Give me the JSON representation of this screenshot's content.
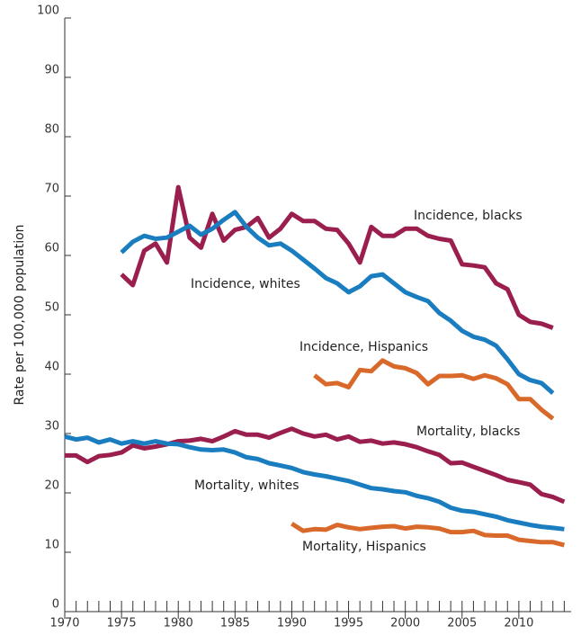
{
  "chart_data": {
    "type": "line",
    "ylabel": "Rate per 100,000 population",
    "xlim": [
      1970,
      2015
    ],
    "xticks": [
      1970,
      1975,
      1980,
      1985,
      1990,
      1995,
      2000,
      2005,
      2010
    ],
    "ylim": [
      0,
      100
    ],
    "yticks": [
      0,
      10,
      20,
      30,
      40,
      50,
      60,
      70,
      80,
      90,
      100
    ],
    "series": [
      {
        "name": "Incidence, blacks",
        "color": "#9b1f4e",
        "x": [
          1975,
          1976,
          1977,
          1978,
          1979,
          1980,
          1981,
          1982,
          1983,
          1984,
          1985,
          1986,
          1987,
          1988,
          1989,
          1990,
          1991,
          1992,
          1993,
          1994,
          1995,
          1996,
          1997,
          1998,
          1999,
          2000,
          2001,
          2002,
          2003,
          2004,
          2005,
          2006,
          2007,
          2008,
          2009,
          2010,
          2011,
          2012,
          2013
        ],
        "values": [
          56.8,
          55.0,
          60.8,
          62.0,
          58.8,
          71.5,
          63.0,
          61.3,
          67.0,
          62.5,
          64.3,
          64.8,
          66.3,
          63.0,
          64.5,
          67.0,
          65.8,
          65.8,
          64.5,
          64.3,
          62.0,
          58.8,
          64.8,
          63.3,
          63.3,
          64.5,
          64.5,
          63.3,
          62.8,
          62.5,
          58.5,
          58.3,
          58.0,
          55.3,
          54.3,
          50.0,
          48.8,
          48.5,
          47.8
        ]
      },
      {
        "name": "Incidence, whites",
        "color": "#1a7dc0",
        "x": [
          1975,
          1976,
          1977,
          1978,
          1979,
          1980,
          1981,
          1982,
          1983,
          1984,
          1985,
          1986,
          1987,
          1988,
          1989,
          1990,
          1991,
          1992,
          1993,
          1994,
          1995,
          1996,
          1997,
          1998,
          1999,
          2000,
          2001,
          2002,
          2003,
          2004,
          2005,
          2006,
          2007,
          2008,
          2009,
          2010,
          2011,
          2012,
          2013
        ],
        "values": [
          60.5,
          62.3,
          63.3,
          62.8,
          63.0,
          64.0,
          65.0,
          63.5,
          64.5,
          66.0,
          67.3,
          64.8,
          63.0,
          61.7,
          62.0,
          60.8,
          59.3,
          57.8,
          56.2,
          55.3,
          53.8,
          54.8,
          56.5,
          56.8,
          55.3,
          53.8,
          53.0,
          52.3,
          50.3,
          49.0,
          47.3,
          46.3,
          45.8,
          44.8,
          42.5,
          40.0,
          39.0,
          38.5,
          36.8
        ]
      },
      {
        "name": "Incidence, Hispanics",
        "color": "#d9692a",
        "x": [
          1992,
          1993,
          1994,
          1995,
          1996,
          1997,
          1998,
          1999,
          2000,
          2001,
          2002,
          2003,
          2004,
          2005,
          2006,
          2007,
          2008,
          2009,
          2010,
          2011,
          2012,
          2013
        ],
        "values": [
          39.8,
          38.3,
          38.5,
          37.8,
          40.7,
          40.5,
          42.3,
          41.3,
          41.0,
          40.2,
          38.3,
          39.7,
          39.7,
          39.8,
          39.2,
          39.8,
          39.3,
          38.3,
          35.8,
          35.8,
          34.0,
          32.5
        ]
      },
      {
        "name": "Mortality, blacks",
        "color": "#9b1f4e",
        "x": [
          1970,
          1971,
          1972,
          1973,
          1974,
          1975,
          1976,
          1977,
          1978,
          1979,
          1980,
          1981,
          1982,
          1983,
          1984,
          1985,
          1986,
          1987,
          1988,
          1989,
          1990,
          1991,
          1992,
          1993,
          1994,
          1995,
          1996,
          1997,
          1998,
          1999,
          2000,
          2001,
          2002,
          2003,
          2004,
          2005,
          2006,
          2007,
          2008,
          2009,
          2010,
          2011,
          2012,
          2013,
          2014
        ],
        "values": [
          26.3,
          26.3,
          25.2,
          26.2,
          26.4,
          26.8,
          28.0,
          27.5,
          27.8,
          28.2,
          28.7,
          28.8,
          29.1,
          28.7,
          29.5,
          30.4,
          29.8,
          29.8,
          29.3,
          30.1,
          30.8,
          30.0,
          29.5,
          29.8,
          29.0,
          29.5,
          28.6,
          28.8,
          28.3,
          28.5,
          28.2,
          27.7,
          27.0,
          26.4,
          25.0,
          25.1,
          24.4,
          23.7,
          23.0,
          22.2,
          21.8,
          21.4,
          19.8,
          19.3,
          18.5
        ]
      },
      {
        "name": "Mortality, whites",
        "color": "#1a7dc0",
        "x": [
          1970,
          1971,
          1972,
          1973,
          1974,
          1975,
          1976,
          1977,
          1978,
          1979,
          1980,
          1981,
          1982,
          1983,
          1984,
          1985,
          1986,
          1987,
          1988,
          1989,
          1990,
          1991,
          1992,
          1993,
          1994,
          1995,
          1996,
          1997,
          1998,
          1999,
          2000,
          2001,
          2002,
          2003,
          2004,
          2005,
          2006,
          2007,
          2008,
          2009,
          2010,
          2011,
          2012,
          2013,
          2014
        ],
        "values": [
          29.5,
          29.0,
          29.3,
          28.5,
          29.0,
          28.3,
          28.7,
          28.3,
          28.7,
          28.3,
          28.2,
          27.7,
          27.3,
          27.2,
          27.3,
          26.8,
          26.0,
          25.7,
          25.0,
          24.6,
          24.2,
          23.5,
          23.1,
          22.8,
          22.4,
          22.0,
          21.4,
          20.8,
          20.6,
          20.3,
          20.1,
          19.5,
          19.1,
          18.5,
          17.5,
          17.0,
          16.8,
          16.4,
          16.0,
          15.4,
          15.0,
          14.6,
          14.3,
          14.1,
          13.9
        ]
      },
      {
        "name": "Mortality, Hispanics",
        "color": "#d9692a",
        "x": [
          1990,
          1991,
          1992,
          1993,
          1994,
          1995,
          1996,
          1997,
          1998,
          1999,
          2000,
          2001,
          2002,
          2003,
          2004,
          2005,
          2006,
          2007,
          2008,
          2009,
          2010,
          2011,
          2012,
          2013,
          2014
        ],
        "values": [
          14.8,
          13.6,
          13.9,
          13.8,
          14.6,
          14.2,
          13.9,
          14.1,
          14.3,
          14.4,
          14.0,
          14.3,
          14.2,
          14.0,
          13.4,
          13.4,
          13.6,
          12.9,
          12.8,
          12.8,
          12.1,
          11.9,
          11.7,
          11.7,
          11.2
        ]
      }
    ]
  }
}
